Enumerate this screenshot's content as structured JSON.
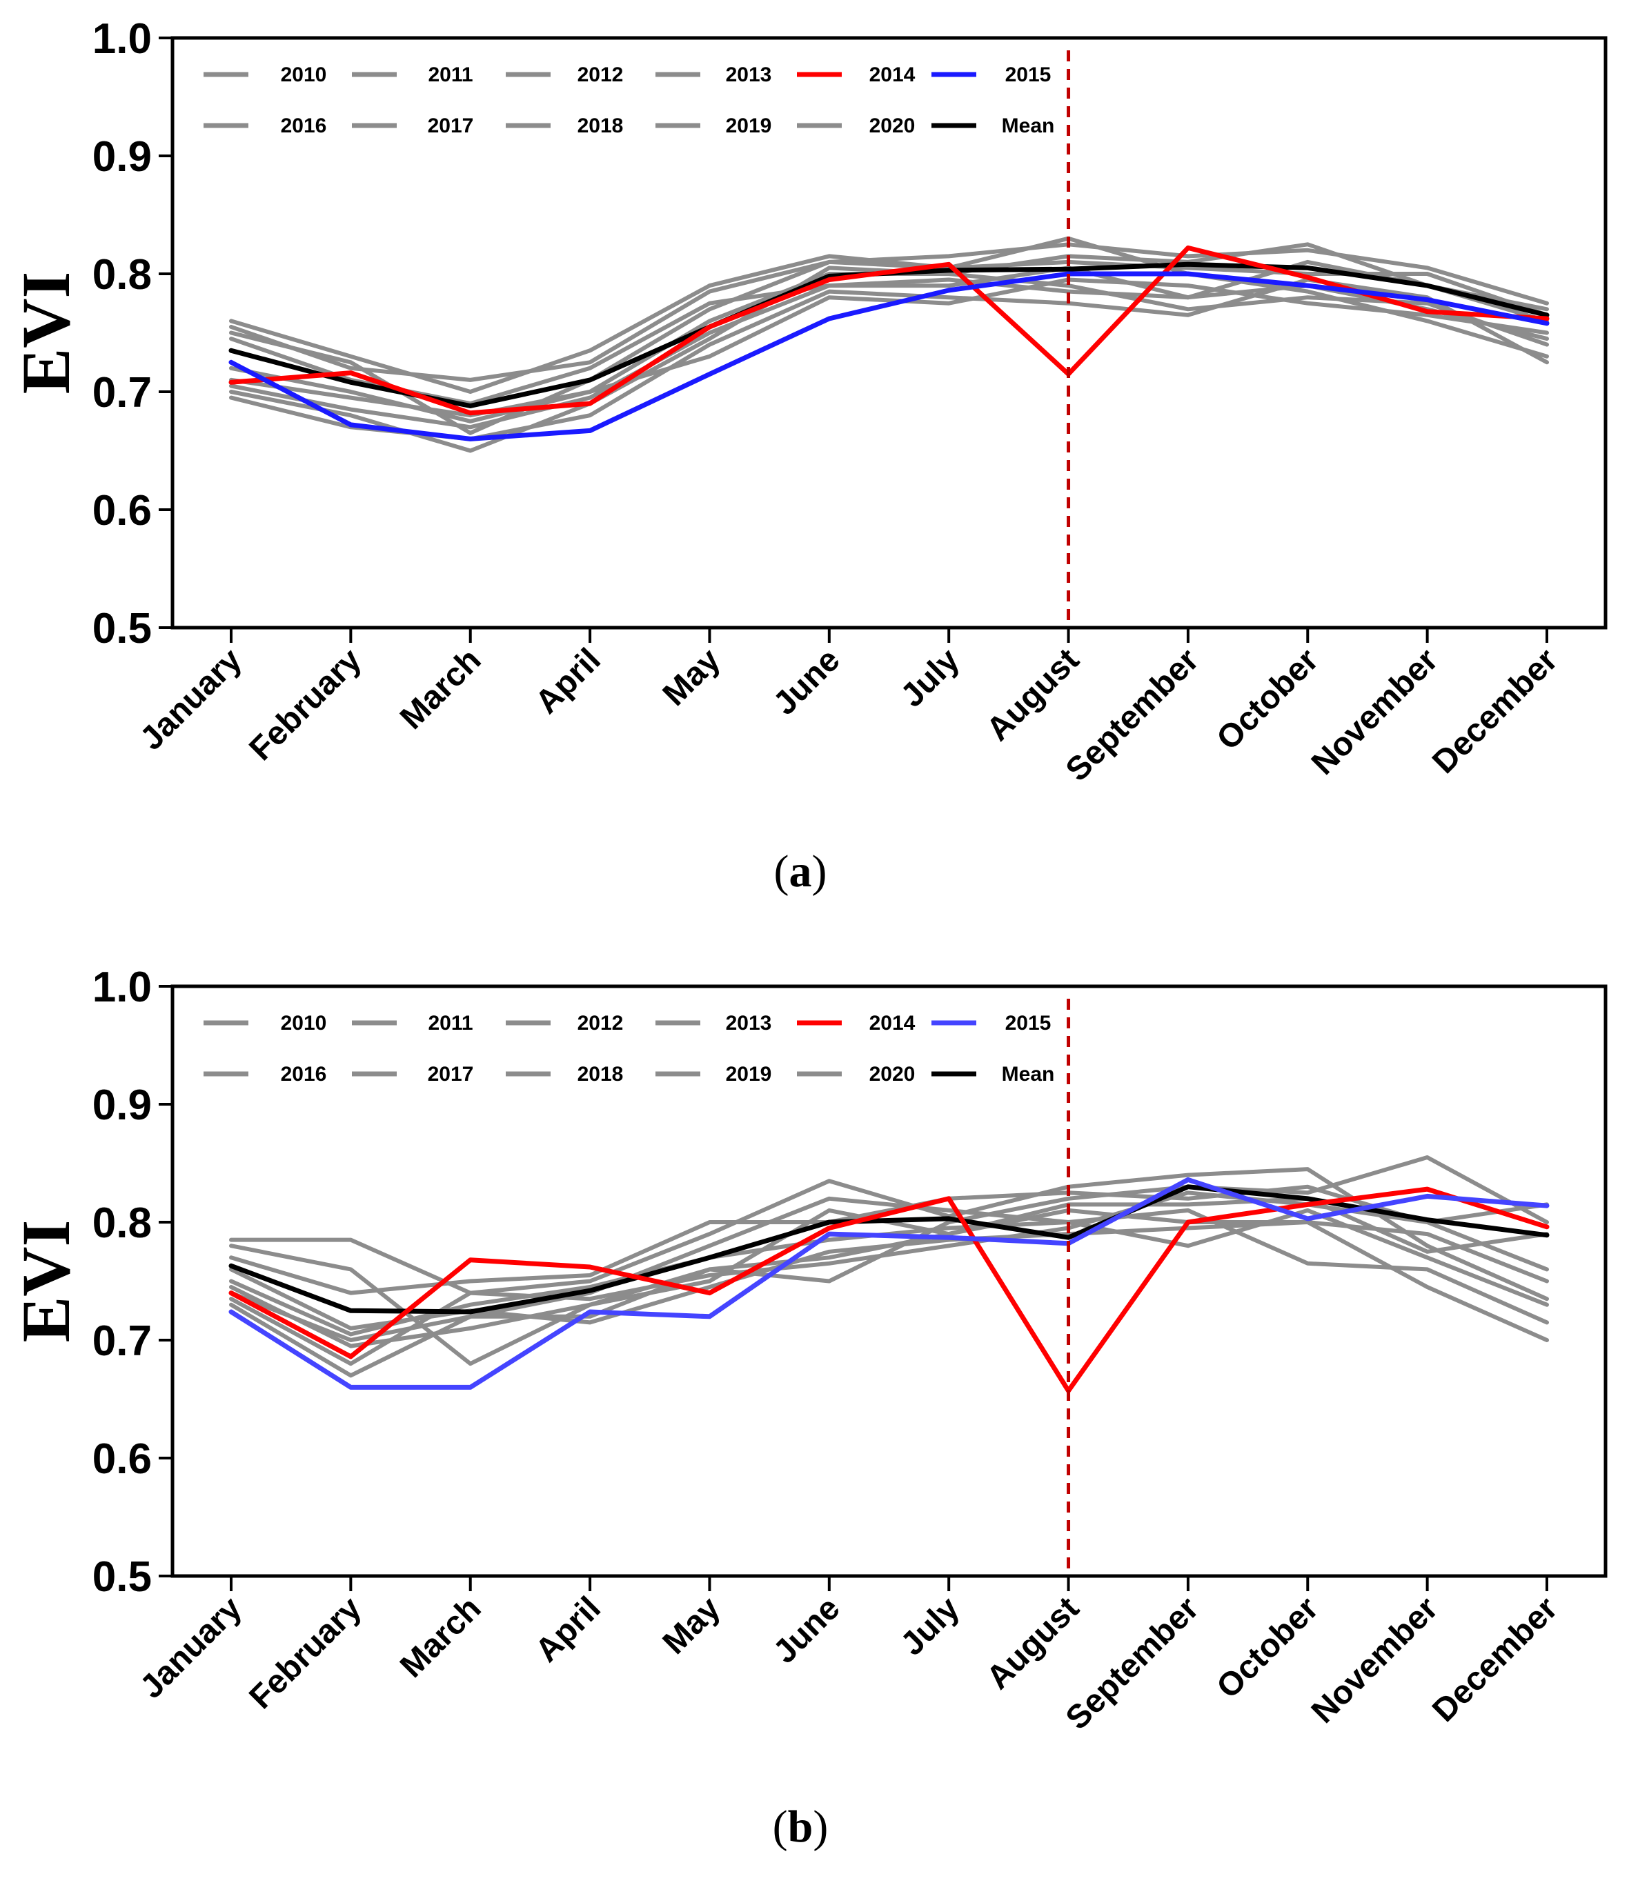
{
  "chart_data": [
    {
      "type": "line",
      "panel_label": "a",
      "ylabel": "EVI",
      "xlabel": "",
      "ylim": [
        0.5,
        1.0
      ],
      "yticks": [
        "0.5",
        "0.6",
        "0.7",
        "0.8",
        "0.9",
        "1.0"
      ],
      "categories": [
        "January",
        "February",
        "March",
        "April",
        "May",
        "June",
        "July",
        "August",
        "September",
        "October",
        "November",
        "December"
      ],
      "vertical_marker": "August",
      "legend": [
        "2010",
        "2011",
        "2012",
        "2013",
        "2014",
        "2015",
        "2016",
        "2017",
        "2018",
        "2019",
        "2020",
        "Mean"
      ],
      "series": [
        {
          "name": "2010",
          "color": "#8c8c8c",
          "values": [
            0.76,
            0.73,
            0.7,
            0.735,
            0.79,
            0.815,
            0.805,
            0.83,
            0.8,
            0.785,
            0.76,
            0.73
          ]
        },
        {
          "name": "2011",
          "color": "#8c8c8c",
          "values": [
            0.745,
            0.71,
            0.69,
            0.72,
            0.775,
            0.79,
            0.79,
            0.805,
            0.78,
            0.81,
            0.79,
            0.76
          ]
        },
        {
          "name": "2012",
          "color": "#8c8c8c",
          "values": [
            0.72,
            0.7,
            0.675,
            0.7,
            0.76,
            0.8,
            0.8,
            0.815,
            0.81,
            0.825,
            0.79,
            0.77
          ]
        },
        {
          "name": "2013",
          "color": "#8c8c8c",
          "values": [
            0.75,
            0.725,
            0.665,
            0.71,
            0.77,
            0.81,
            0.815,
            0.825,
            0.815,
            0.82,
            0.805,
            0.775
          ]
        },
        {
          "name": "2014",
          "color": "#ff0000",
          "values": [
            0.708,
            0.716,
            0.682,
            0.69,
            0.755,
            0.795,
            0.808,
            0.715,
            0.822,
            0.797,
            0.768,
            0.762
          ]
        },
        {
          "name": "2015",
          "color": "#1a1aff",
          "values": [
            0.725,
            0.672,
            0.66,
            0.667,
            0.715,
            0.762,
            0.786,
            0.8,
            0.8,
            0.79,
            0.778,
            0.758
          ]
        },
        {
          "name": "2016",
          "color": "#8c8c8c",
          "values": [
            0.7,
            0.68,
            0.65,
            0.69,
            0.745,
            0.805,
            0.8,
            0.79,
            0.77,
            0.78,
            0.775,
            0.74
          ]
        },
        {
          "name": "2017",
          "color": "#8c8c8c",
          "values": [
            0.695,
            0.67,
            0.66,
            0.68,
            0.74,
            0.785,
            0.78,
            0.775,
            0.765,
            0.795,
            0.78,
            0.725
          ]
        },
        {
          "name": "2018",
          "color": "#8c8c8c",
          "values": [
            0.71,
            0.695,
            0.68,
            0.7,
            0.73,
            0.78,
            0.775,
            0.795,
            0.79,
            0.775,
            0.765,
            0.75
          ]
        },
        {
          "name": "2019",
          "color": "#8c8c8c",
          "values": [
            0.755,
            0.72,
            0.71,
            0.725,
            0.785,
            0.81,
            0.805,
            0.81,
            0.805,
            0.8,
            0.8,
            0.765
          ]
        },
        {
          "name": "2020",
          "color": "#8c8c8c",
          "values": [
            0.705,
            0.685,
            0.67,
            0.695,
            0.75,
            0.79,
            0.795,
            0.785,
            0.78,
            0.79,
            0.77,
            0.745
          ]
        },
        {
          "name": "Mean",
          "color": "#000000",
          "values": [
            0.735,
            0.708,
            0.688,
            0.71,
            0.755,
            0.798,
            0.803,
            0.804,
            0.808,
            0.805,
            0.79,
            0.765
          ]
        }
      ]
    },
    {
      "type": "line",
      "panel_label": "b",
      "ylabel": "EVI",
      "xlabel": "",
      "ylim": [
        0.5,
        1.0
      ],
      "yticks": [
        "0.5",
        "0.6",
        "0.7",
        "0.8",
        "0.9",
        "1.0"
      ],
      "categories": [
        "January",
        "February",
        "March",
        "April",
        "May",
        "June",
        "July",
        "August",
        "September",
        "October",
        "November",
        "December"
      ],
      "vertical_marker": "August",
      "legend": [
        "2010",
        "2011",
        "2012",
        "2013",
        "2014",
        "2015",
        "2016",
        "2017",
        "2018",
        "2019",
        "2020",
        "Mean"
      ],
      "series": [
        {
          "name": "2010",
          "color": "#8c8c8c",
          "values": [
            0.785,
            0.785,
            0.74,
            0.75,
            0.79,
            0.835,
            0.805,
            0.83,
            0.84,
            0.845,
            0.78,
            0.735
          ]
        },
        {
          "name": "2011",
          "color": "#8c8c8c",
          "values": [
            0.78,
            0.76,
            0.68,
            0.73,
            0.76,
            0.75,
            0.8,
            0.82,
            0.83,
            0.825,
            0.855,
            0.8
          ]
        },
        {
          "name": "2012",
          "color": "#8c8c8c",
          "values": [
            0.77,
            0.74,
            0.75,
            0.755,
            0.8,
            0.8,
            0.82,
            0.825,
            0.82,
            0.83,
            0.8,
            0.76
          ]
        },
        {
          "name": "2013",
          "color": "#8c8c8c",
          "values": [
            0.74,
            0.7,
            0.72,
            0.74,
            0.78,
            0.82,
            0.81,
            0.8,
            0.81,
            0.765,
            0.76,
            0.715
          ]
        },
        {
          "name": "2014",
          "color": "#ff0000",
          "values": [
            0.74,
            0.686,
            0.768,
            0.762,
            0.74,
            0.795,
            0.82,
            0.657,
            0.8,
            0.815,
            0.828,
            0.796
          ]
        },
        {
          "name": "2015",
          "color": "#4444ff",
          "values": [
            0.724,
            0.66,
            0.66,
            0.724,
            0.72,
            0.79,
            0.787,
            0.782,
            0.836,
            0.803,
            0.822,
            0.814
          ]
        },
        {
          "name": "2016",
          "color": "#8c8c8c",
          "values": [
            0.73,
            0.67,
            0.72,
            0.72,
            0.76,
            0.77,
            0.79,
            0.81,
            0.8,
            0.8,
            0.745,
            0.7
          ]
        },
        {
          "name": "2017",
          "color": "#8c8c8c",
          "values": [
            0.75,
            0.705,
            0.73,
            0.745,
            0.77,
            0.785,
            0.795,
            0.8,
            0.78,
            0.81,
            0.77,
            0.73
          ]
        },
        {
          "name": "2018",
          "color": "#8c8c8c",
          "values": [
            0.76,
            0.71,
            0.725,
            0.715,
            0.745,
            0.775,
            0.785,
            0.79,
            0.795,
            0.8,
            0.79,
            0.75
          ]
        },
        {
          "name": "2019",
          "color": "#8c8c8c",
          "values": [
            0.735,
            0.68,
            0.74,
            0.735,
            0.755,
            0.765,
            0.78,
            0.795,
            0.825,
            0.815,
            0.8,
            0.815
          ]
        },
        {
          "name": "2020",
          "color": "#8c8c8c",
          "values": [
            0.745,
            0.695,
            0.71,
            0.73,
            0.75,
            0.81,
            0.79,
            0.815,
            0.815,
            0.82,
            0.775,
            0.79
          ]
        },
        {
          "name": "Mean",
          "color": "#000000",
          "values": [
            0.763,
            0.725,
            0.724,
            0.742,
            0.77,
            0.8,
            0.803,
            0.787,
            0.83,
            0.82,
            0.802,
            0.789
          ]
        }
      ]
    }
  ]
}
